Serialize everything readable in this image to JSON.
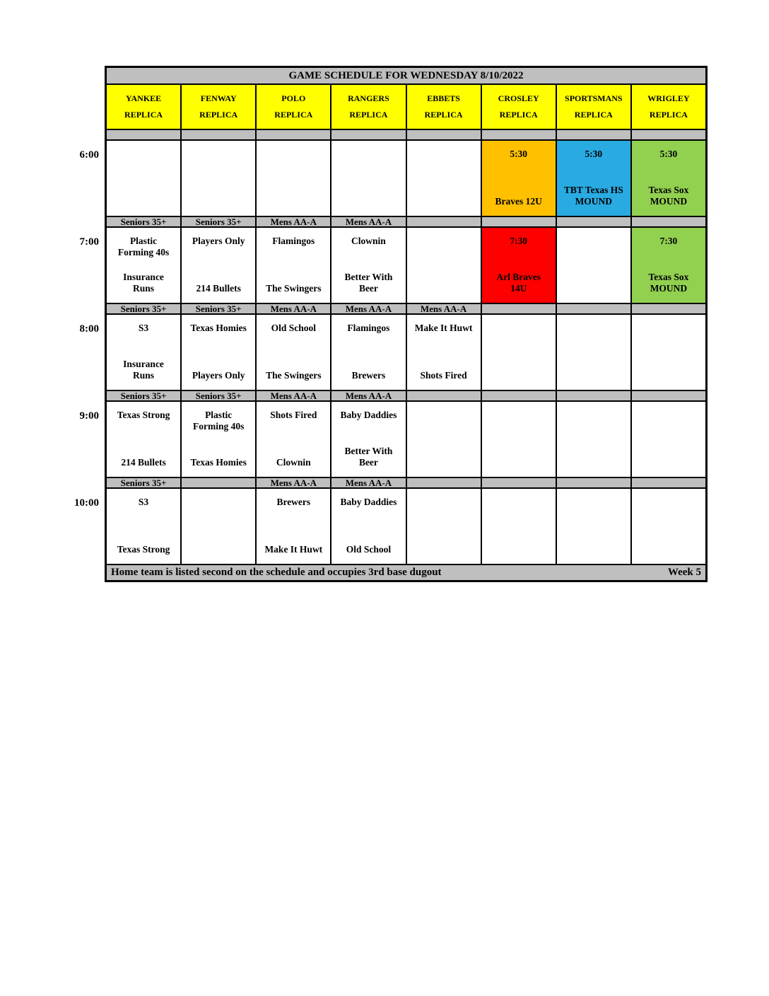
{
  "title": "GAME SCHEDULE FOR WEDNESDAY 8/10/2022",
  "colors": {
    "bar_gray": "#BFBFBF",
    "venue_yellow": "#FFFF00",
    "orange": "#FFC000",
    "blue": "#29ABE2",
    "green": "#92D050",
    "red": "#FF0000"
  },
  "venues": [
    {
      "name": "YANKEE",
      "type": "REPLICA"
    },
    {
      "name": "FENWAY",
      "type": "REPLICA"
    },
    {
      "name": "POLO",
      "type": "REPLICA"
    },
    {
      "name": "RANGERS",
      "type": "REPLICA"
    },
    {
      "name": "EBBETS",
      "type": "REPLICA"
    },
    {
      "name": "CROSLEY",
      "type": "REPLICA"
    },
    {
      "name": "SPORTSMANS",
      "type": "REPLICA"
    },
    {
      "name": "WRIGLEY",
      "type": "REPLICA"
    }
  ],
  "schedule": {
    "rows": [
      {
        "time": "6:00",
        "cells": [
          {},
          {},
          {},
          {},
          {},
          {
            "bg": "#FFC000",
            "top": "5:30",
            "bottom": "Braves 12U"
          },
          {
            "bg": "#29ABE2",
            "top": "5:30",
            "bottom": "TBT Texas HS\nMOUND"
          },
          {
            "bg": "#92D050",
            "top": "5:30",
            "bottom": "Texas Sox\nMOUND"
          }
        ],
        "divider": [
          "Seniors 35+",
          "Seniors 35+",
          "Mens AA-A",
          "Mens AA-A",
          "",
          "",
          "",
          ""
        ]
      },
      {
        "time": "7:00",
        "cells": [
          {
            "top": "Plastic\nForming 40s",
            "bottom": "Insurance\nRuns"
          },
          {
            "top": "Players Only",
            "bottom": "214 Bullets"
          },
          {
            "top": "Flamingos",
            "bottom": "The Swingers"
          },
          {
            "top": "Clownin",
            "bottom": "Better With\nBeer"
          },
          {},
          {
            "bg": "#FF0000",
            "top": "7:30",
            "bottom": "Arl Braves\n14U"
          },
          {},
          {
            "bg": "#92D050",
            "top": "7:30",
            "bottom": "Texas Sox\nMOUND"
          }
        ],
        "divider": [
          "Seniors 35+",
          "Seniors 35+",
          "Mens AA-A",
          "Mens AA-A",
          "Mens AA-A",
          "",
          "",
          ""
        ]
      },
      {
        "time": "8:00",
        "cells": [
          {
            "top": "S3",
            "bottom": "Insurance\nRuns"
          },
          {
            "top": "Texas Homies",
            "bottom": "Players Only"
          },
          {
            "top": "Old School",
            "bottom": "The Swingers"
          },
          {
            "top": "Flamingos",
            "bottom": "Brewers"
          },
          {
            "top": "Make It Huwt",
            "bottom": "Shots Fired"
          },
          {},
          {},
          {}
        ],
        "divider": [
          "Seniors 35+",
          "Seniors 35+",
          "Mens AA-A",
          "Mens AA-A",
          "",
          "",
          "",
          ""
        ]
      },
      {
        "time": "9:00",
        "cells": [
          {
            "top": "Texas Strong",
            "bottom": "214 Bullets"
          },
          {
            "top": "Plastic\nForming 40s",
            "bottom": "Texas Homies"
          },
          {
            "top": "Shots Fired",
            "bottom": "Clownin"
          },
          {
            "top": "Baby Daddies",
            "bottom": "Better With\nBeer"
          },
          {},
          {},
          {},
          {}
        ],
        "divider": [
          "Seniors 35+",
          "",
          "Mens AA-A",
          "Mens AA-A",
          "",
          "",
          "",
          ""
        ]
      },
      {
        "time": "10:00",
        "cells": [
          {
            "top": "S3",
            "bottom": "Texas Strong"
          },
          {},
          {
            "top": "Brewers",
            "bottom": "Make It Huwt"
          },
          {
            "top": "Baby Daddies",
            "bottom": "Old School"
          },
          {},
          {},
          {},
          {}
        ],
        "divider": null
      }
    ]
  },
  "footer": {
    "note": "Home team is listed second on the schedule and occupies 3rd base dugout",
    "week": "Week 5"
  }
}
